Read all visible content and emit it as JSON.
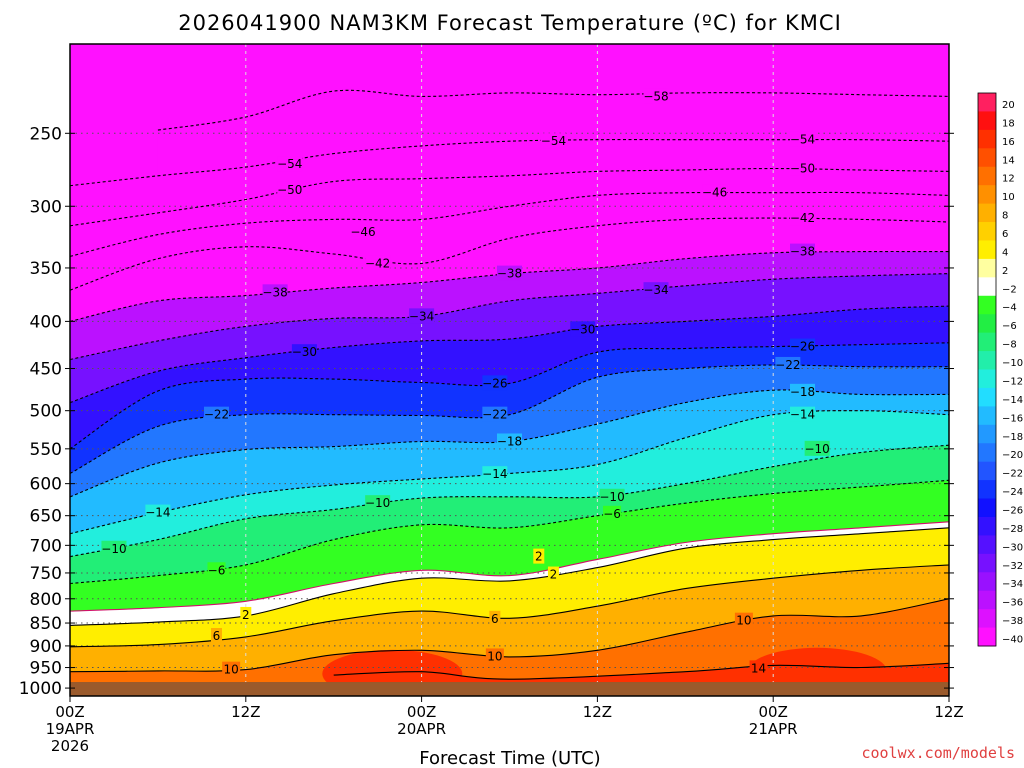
{
  "chart_data": {
    "type": "heatmap",
    "title": "2026041900 NAM3KM Forecast Temperature (ºC) for KMCI",
    "xlabel": "Forecast Time (UTC)",
    "ylabel": "",
    "credit": "coolwx.com/models",
    "x_ticks": [
      {
        "hour": 0,
        "lines": [
          "00Z",
          "19APR",
          "2026"
        ]
      },
      {
        "hour": 12,
        "lines": [
          "12Z"
        ]
      },
      {
        "hour": 24,
        "lines": [
          "00Z",
          "20APR"
        ]
      },
      {
        "hour": 36,
        "lines": [
          "12Z"
        ]
      },
      {
        "hour": 48,
        "lines": [
          "00Z",
          "21APR"
        ]
      },
      {
        "hour": 60,
        "lines": [
          "12Z"
        ]
      }
    ],
    "xlim": [
      0,
      60
    ],
    "y_scale": "log-pressure",
    "y_ticks": [
      250,
      300,
      350,
      400,
      450,
      500,
      550,
      600,
      650,
      700,
      750,
      800,
      850,
      900,
      950,
      1000
    ],
    "ylim_hPa": [
      200,
      1020
    ],
    "surface_hPa": 985,
    "grid": "dotted",
    "colorbar": {
      "position": "right",
      "labels": [
        20,
        18,
        16,
        14,
        12,
        10,
        8,
        6,
        4,
        2,
        -2,
        -4,
        -6,
        -8,
        -10,
        -12,
        -14,
        -16,
        -18,
        -20,
        -22,
        -24,
        -26,
        -28,
        -30,
        -32,
        -34,
        -36,
        -38,
        -40
      ],
      "colors": [
        "#ff2060",
        "#ff1010",
        "#ff3000",
        "#ff5000",
        "#ff7000",
        "#ff9000",
        "#ffb000",
        "#ffd000",
        "#ffee00",
        "#ffffa0",
        "#ffffff",
        "#33ff22",
        "#22ee44",
        "#22ee77",
        "#22eeaa",
        "#22eedd",
        "#22ddff",
        "#22bbff",
        "#2299ff",
        "#2277ff",
        "#2255ff",
        "#1133ff",
        "#1111ff",
        "#3311ff",
        "#5511ff",
        "#7711ff",
        "#9911ff",
        "#bb11ff",
        "#dd11ff",
        "#ff11ff"
      ]
    },
    "time_hours": [
      0,
      6,
      12,
      18,
      24,
      30,
      36,
      42,
      48,
      54,
      60
    ],
    "isotherms": [
      {
        "temp": 18,
        "p": [
          null,
          null,
          null,
          null,
          null,
          null,
          null,
          null,
          null,
          null,
          null
        ]
      },
      {
        "temp": 14,
        "p": [
          null,
          null,
          null,
          968,
          960,
          978,
          null,
          960,
          945,
          950,
          940
        ]
      },
      {
        "temp": 10,
        "p": [
          960,
          958,
          955,
          920,
          910,
          925,
          910,
          870,
          835,
          835,
          800
        ]
      },
      {
        "temp": 6,
        "p": [
          902,
          897,
          880,
          845,
          825,
          840,
          815,
          780,
          760,
          745,
          735
        ]
      },
      {
        "temp": 2,
        "p": [
          855,
          848,
          835,
          790,
          760,
          765,
          740,
          705,
          690,
          680,
          670
        ]
      },
      {
        "temp": -2,
        "p": [
          825,
          818,
          805,
          770,
          745,
          755,
          725,
          695,
          680,
          670,
          660
        ]
      },
      {
        "temp": -6,
        "p": [
          770,
          755,
          735,
          690,
          665,
          670,
          650,
          630,
          615,
          605,
          595
        ]
      },
      {
        "temp": -10,
        "p": [
          720,
          690,
          655,
          640,
          622,
          620,
          620,
          600,
          575,
          555,
          545
        ]
      },
      {
        "temp": -14,
        "p": [
          680,
          645,
          617,
          602,
          593,
          585,
          572,
          535,
          505,
          500,
          505
        ]
      },
      {
        "temp": -18,
        "p": [
          620,
          570,
          551,
          547,
          540,
          540,
          517,
          490,
          475,
          480,
          480
        ]
      },
      {
        "temp": -22,
        "p": [
          585,
          520,
          505,
          505,
          506,
          505,
          460,
          450,
          446,
          448,
          448
        ]
      },
      {
        "temp": -26,
        "p": [
          550,
          476,
          462,
          462,
          466,
          467,
          432,
          428,
          426,
          424,
          422
        ]
      },
      {
        "temp": -30,
        "p": [
          490,
          453,
          438,
          427,
          420,
          418,
          405,
          400,
          395,
          388,
          385
        ]
      },
      {
        "temp": -34,
        "p": [
          440,
          420,
          405,
          397,
          395,
          380,
          373,
          366,
          360,
          357,
          355
        ]
      },
      {
        "temp": -38,
        "p": [
          400,
          380,
          375,
          368,
          363,
          355,
          350,
          342,
          337,
          336,
          336
        ]
      },
      {
        "temp": -42,
        "p": [
          370,
          342,
          332,
          338,
          346,
          325,
          315,
          310,
          309,
          310,
          312
        ]
      },
      {
        "temp": -46,
        "p": [
          340,
          322,
          313,
          310,
          310,
          300,
          292,
          290,
          290,
          290,
          292
        ]
      },
      {
        "temp": -50,
        "p": [
          315,
          305,
          295,
          282,
          280,
          278,
          275,
          274,
          273,
          274,
          275
        ]
      },
      {
        "temp": -54,
        "p": [
          285,
          278,
          272,
          263,
          258,
          255,
          254,
          254,
          254,
          254,
          255
        ]
      },
      {
        "temp": -58,
        "p": [
          null,
          248,
          240,
          225,
          228,
          226,
          227,
          226,
          226,
          227,
          228
        ]
      }
    ],
    "warm_pockets": [
      {
        "temp": 18,
        "hour": 22,
        "p": 983
      },
      {
        "temp": 18,
        "hour": 50,
        "p": 983
      },
      {
        "temp": 14,
        "hour": 22,
        "p": 965
      },
      {
        "temp": 14,
        "hour": 51,
        "p": 960
      }
    ],
    "contour_labels": [
      {
        "temp": -58,
        "hour": 40,
        "p": 228
      },
      {
        "temp": -54,
        "hour": 15,
        "p": 270
      },
      {
        "temp": -54,
        "hour": 33,
        "p": 255
      },
      {
        "temp": -54,
        "hour": 50,
        "p": 254
      },
      {
        "temp": -50,
        "hour": 15,
        "p": 288
      },
      {
        "temp": -50,
        "hour": 50,
        "p": 273
      },
      {
        "temp": -46,
        "hour": 20,
        "p": 320
      },
      {
        "temp": -46,
        "hour": 44,
        "p": 290
      },
      {
        "temp": -42,
        "hour": 21,
        "p": 346
      },
      {
        "temp": -42,
        "hour": 50,
        "p": 309
      },
      {
        "temp": -38,
        "hour": 14,
        "p": 372
      },
      {
        "temp": -38,
        "hour": 30,
        "p": 355
      },
      {
        "temp": -38,
        "hour": 50,
        "p": 336
      },
      {
        "temp": -34,
        "hour": 24,
        "p": 395
      },
      {
        "temp": -34,
        "hour": 40,
        "p": 370
      },
      {
        "temp": -30,
        "hour": 16,
        "p": 432
      },
      {
        "temp": -30,
        "hour": 35,
        "p": 408
      },
      {
        "temp": -26,
        "hour": 29,
        "p": 467
      },
      {
        "temp": -26,
        "hour": 50,
        "p": 426
      },
      {
        "temp": -22,
        "hour": 10,
        "p": 505
      },
      {
        "temp": -22,
        "hour": 29,
        "p": 505
      },
      {
        "temp": -22,
        "hour": 49,
        "p": 446
      },
      {
        "temp": -18,
        "hour": 30,
        "p": 540
      },
      {
        "temp": -18,
        "hour": 50,
        "p": 477
      },
      {
        "temp": -14,
        "hour": 6,
        "p": 645
      },
      {
        "temp": -14,
        "hour": 29,
        "p": 586
      },
      {
        "temp": -14,
        "hour": 50,
        "p": 505
      },
      {
        "temp": -10,
        "hour": 3,
        "p": 706
      },
      {
        "temp": -10,
        "hour": 21,
        "p": 630
      },
      {
        "temp": -10,
        "hour": 37,
        "p": 620
      },
      {
        "temp": -10,
        "hour": 51,
        "p": 550
      },
      {
        "temp": -6,
        "hour": 10,
        "p": 745
      },
      {
        "temp": -6,
        "hour": 37,
        "p": 647
      },
      {
        "temp": 2,
        "hour": 12,
        "p": 833
      },
      {
        "temp": 2,
        "hour": 33,
        "p": 753
      },
      {
        "temp": 2,
        "hour": 32,
        "p": 720
      },
      {
        "temp": 6,
        "hour": 10,
        "p": 878
      },
      {
        "temp": 6,
        "hour": 29,
        "p": 841
      },
      {
        "temp": 10,
        "hour": 11,
        "p": 955
      },
      {
        "temp": 10,
        "hour": 29,
        "p": 924
      },
      {
        "temp": 10,
        "hour": 46,
        "p": 845
      },
      {
        "temp": 14,
        "hour": 47,
        "p": 952
      }
    ]
  }
}
